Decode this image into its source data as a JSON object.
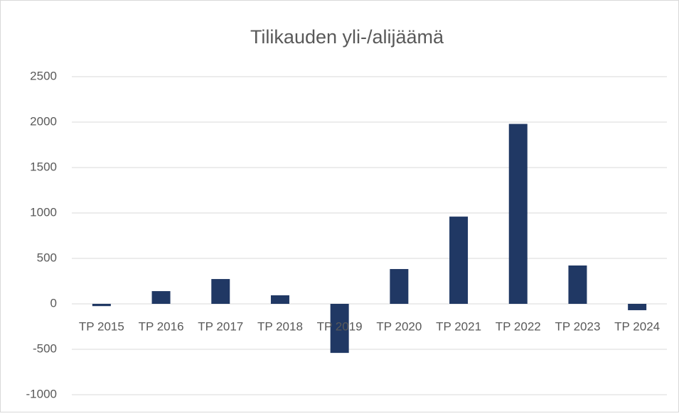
{
  "chart_data": {
    "type": "bar",
    "title": "Tilikauden yli-/alijäämä",
    "categories": [
      "TP 2015",
      "TP 2016",
      "TP 2017",
      "TP 2018",
      "TP 2019",
      "TP 2020",
      "TP 2021",
      "TP 2022",
      "TP 2023",
      "TP 2024"
    ],
    "values": [
      -25,
      140,
      273,
      94,
      -540,
      383,
      960,
      1980,
      422,
      -70
    ],
    "color": "#203864",
    "ylim": [
      -1000,
      2500
    ],
    "yticks": [
      -1000,
      -500,
      0,
      500,
      1000,
      1500,
      2000,
      2500
    ],
    "grid": true
  }
}
